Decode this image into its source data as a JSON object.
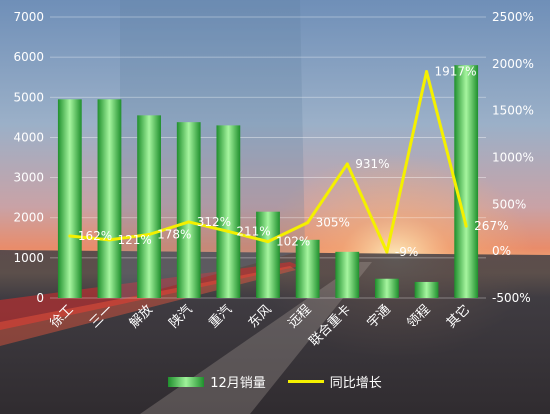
{
  "chart_data": {
    "type": "bar",
    "categories": [
      "徐工",
      "三一",
      "解放",
      "陕汽",
      "重汽",
      "东风",
      "远程",
      "联合重卡",
      "宇通",
      "领程",
      "其它"
    ],
    "series": [
      {
        "name": "12月销量",
        "type": "bar",
        "axis": "left",
        "values": [
          4950,
          4950,
          4550,
          4380,
          4300,
          2150,
          1450,
          1150,
          480,
          400,
          5800
        ],
        "color": "#3fbf4b"
      },
      {
        "name": "同比增长",
        "type": "line",
        "axis": "right",
        "values": [
          162,
          121,
          178,
          312,
          211,
          102,
          305,
          931,
          -9,
          1917,
          267
        ],
        "labels": [
          "162%",
          "121%",
          "178%",
          "312%",
          "211%",
          "102%",
          "305%",
          "931%",
          "-9%",
          "1917%",
          "267%"
        ],
        "color": "#f4f000"
      }
    ],
    "y_left": {
      "min": 0,
      "max": 7000,
      "ticks": [
        0,
        1000,
        2000,
        3000,
        4000,
        5000,
        6000,
        7000
      ]
    },
    "y_right": {
      "min": -500,
      "max": 2500,
      "ticks": [
        -500,
        0,
        500,
        1000,
        1500,
        2000,
        2500
      ],
      "tick_labels": [
        "-500%",
        "0%",
        "500%",
        "1000%",
        "1500%",
        "2000%",
        "2500%"
      ]
    },
    "grid": true,
    "legend": {
      "position": "bottom",
      "entries": [
        "12月销量",
        "同比增长"
      ]
    }
  },
  "colors": {
    "bar_dark": "#1f8f2d",
    "bar_light": "#a6f59f",
    "line": "#f4f000",
    "text": "#ffffff"
  }
}
